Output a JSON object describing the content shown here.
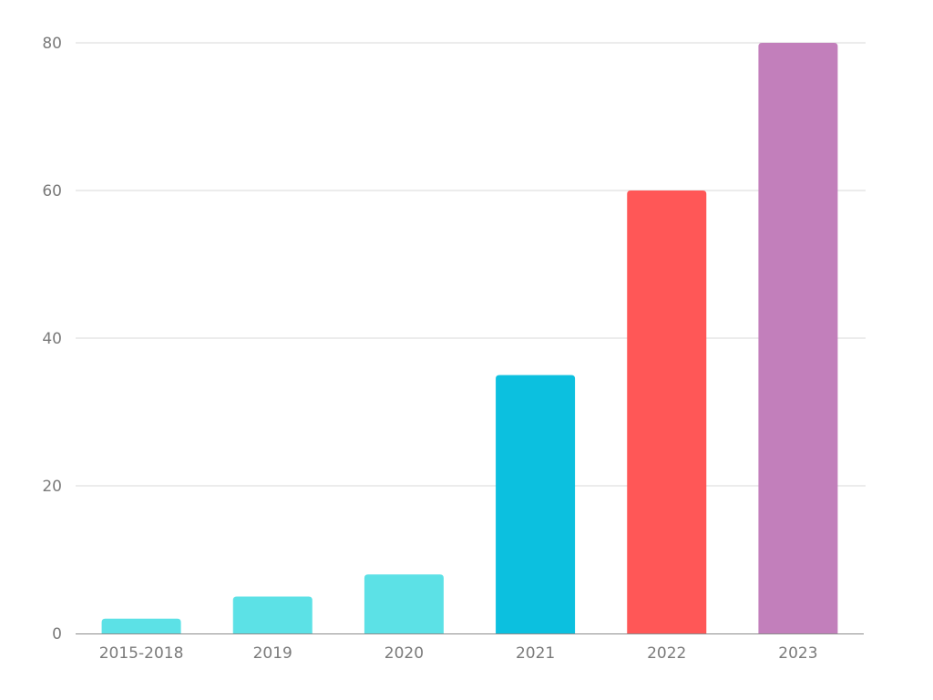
{
  "chart_data": {
    "type": "bar",
    "title": "",
    "xlabel": "",
    "ylabel": "",
    "categories": [
      "2015-2018",
      "2019",
      "2020",
      "2021",
      "2022",
      "2023"
    ],
    "values": [
      2,
      5,
      8,
      35,
      60,
      80
    ],
    "colors": [
      "#5ce1e6",
      "#5ce1e6",
      "#5ce1e6",
      "#0cc0df",
      "#ff5757",
      "#c27fbb"
    ],
    "ylim": [
      0,
      80
    ],
    "yticks": [
      0,
      20,
      40,
      60,
      80
    ],
    "grid": true,
    "legend": "none"
  }
}
